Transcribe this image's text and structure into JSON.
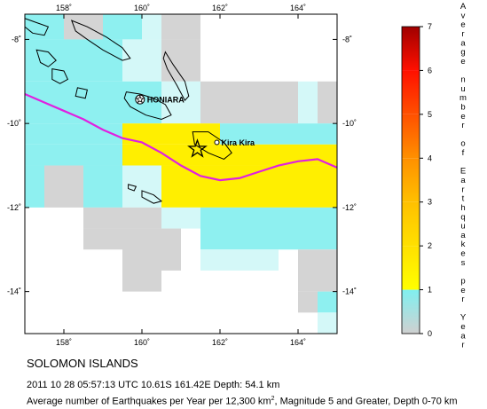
{
  "region_title": "SOLOMON ISLANDS",
  "event_line": "2011 10 28 05:57:13 UTC 10.61S 161.42E Depth: 54.1 km",
  "description": {
    "prefix": "Average number of Earthquakes per Year per 12,300 km",
    "superscript": "2",
    "suffix": ", Magnitude 5 and Greater, Depth 0-70 km"
  },
  "map": {
    "lon_range": [
      157,
      165
    ],
    "lat_range": [
      -15,
      -7.4
    ],
    "lon_ticks": [
      {
        "value": 158,
        "label": "158˚"
      },
      {
        "value": 160,
        "label": "160˚"
      },
      {
        "value": 162,
        "label": "162˚"
      },
      {
        "value": 164,
        "label": "164˚"
      }
    ],
    "lat_ticks": [
      {
        "value": -8,
        "label": "-8˚"
      },
      {
        "value": -10,
        "label": "-10˚"
      },
      {
        "value": -12,
        "label": "-12˚"
      },
      {
        "value": -14,
        "label": "-14˚"
      }
    ],
    "cities": [
      {
        "name": "HONIARA",
        "lon": 159.95,
        "lat": -9.43,
        "marker": "star-in-circle"
      },
      {
        "name": "Kira Kira",
        "lon": 161.92,
        "lat": -10.45,
        "marker": "circle"
      }
    ],
    "epicenter": {
      "lon": 161.42,
      "lat": -10.61,
      "marker": "star"
    },
    "trench_color": "#e020e0",
    "trench_line": [
      [
        157,
        -9.3
      ],
      [
        157.5,
        -9.5
      ],
      [
        158,
        -9.7
      ],
      [
        158.5,
        -9.9
      ],
      [
        159,
        -10.15
      ],
      [
        159.5,
        -10.35
      ],
      [
        160,
        -10.45
      ],
      [
        160.5,
        -10.7
      ],
      [
        161,
        -11.0
      ],
      [
        161.5,
        -11.25
      ],
      [
        162,
        -11.35
      ],
      [
        162.5,
        -11.3
      ],
      [
        163,
        -11.15
      ],
      [
        163.5,
        -11.0
      ],
      [
        164,
        -10.9
      ],
      [
        164.5,
        -10.85
      ],
      [
        165,
        -11.05
      ]
    ],
    "grid_cells": [
      {
        "lon": 157,
        "lat": -7.4,
        "w": 1,
        "h": 0.6,
        "color": "#8ef0f0"
      },
      {
        "lon": 158,
        "lat": -7.4,
        "w": 1,
        "h": 0.6,
        "color": "#d4d4d4"
      },
      {
        "lon": 159,
        "lat": -7.4,
        "w": 1,
        "h": 0.6,
        "color": "#8ef0f0"
      },
      {
        "lon": 160,
        "lat": -7.4,
        "w": 0.5,
        "h": 0.6,
        "color": "#d4f8f8"
      },
      {
        "lon": 160.5,
        "lat": -7.4,
        "w": 1,
        "h": 0.6,
        "color": "#d4d4d4"
      },
      {
        "lon": 157,
        "lat": -8,
        "w": 2.5,
        "h": 1,
        "color": "#8ef0f0"
      },
      {
        "lon": 159.5,
        "lat": -8,
        "w": 1,
        "h": 1,
        "color": "#d4f8f8"
      },
      {
        "lon": 160.5,
        "lat": -8,
        "w": 1,
        "h": 1,
        "color": "#d4d4d4"
      },
      {
        "lon": 157,
        "lat": -9,
        "w": 3.5,
        "h": 1,
        "color": "#8ef0f0"
      },
      {
        "lon": 160.5,
        "lat": -9,
        "w": 1,
        "h": 1,
        "color": "#d4f8f8"
      },
      {
        "lon": 161.5,
        "lat": -9,
        "w": 2.5,
        "h": 1,
        "color": "#d4d4d4"
      },
      {
        "lon": 164,
        "lat": -9,
        "w": 0.5,
        "h": 1,
        "color": "#d4f8f8"
      },
      {
        "lon": 164.5,
        "lat": -9,
        "w": 0.5,
        "h": 1,
        "color": "#d4d4d4"
      },
      {
        "lon": 157,
        "lat": -10,
        "w": 2.5,
        "h": 0.5,
        "color": "#8ef0f0"
      },
      {
        "lon": 159.5,
        "lat": -10,
        "w": 2.5,
        "h": 0.5,
        "color": "#ffef00"
      },
      {
        "lon": 162,
        "lat": -10,
        "w": 3,
        "h": 0.5,
        "color": "#8ef0f0"
      },
      {
        "lon": 157,
        "lat": -10.5,
        "w": 2.5,
        "h": 0.5,
        "color": "#8ef0f0"
      },
      {
        "lon": 159.5,
        "lat": -10.5,
        "w": 5.5,
        "h": 0.5,
        "color": "#ffef00"
      },
      {
        "lon": 157,
        "lat": -11,
        "w": 0.5,
        "h": 1,
        "color": "#8ef0f0"
      },
      {
        "lon": 157.5,
        "lat": -11,
        "w": 1,
        "h": 1,
        "color": "#d4d4d4"
      },
      {
        "lon": 158.5,
        "lat": -11,
        "w": 1,
        "h": 1,
        "color": "#8ef0f0"
      },
      {
        "lon": 159.5,
        "lat": -11,
        "w": 1,
        "h": 1,
        "color": "#d4f8f8"
      },
      {
        "lon": 160.5,
        "lat": -11,
        "w": 2.5,
        "h": 1,
        "color": "#ffef00"
      },
      {
        "lon": 163,
        "lat": -11,
        "w": 1,
        "h": 1,
        "color": "#ffef00"
      },
      {
        "lon": 164,
        "lat": -11,
        "w": 1,
        "h": 1,
        "color": "#ffef00"
      },
      {
        "lon": 158.5,
        "lat": -12,
        "w": 2,
        "h": 0.5,
        "color": "#d4d4d4"
      },
      {
        "lon": 160.5,
        "lat": -12,
        "w": 1,
        "h": 0.5,
        "color": "#d4f8f8"
      },
      {
        "lon": 161.5,
        "lat": -12,
        "w": 3,
        "h": 1,
        "color": "#8ef0f0"
      },
      {
        "lon": 164.5,
        "lat": -12,
        "w": 0.5,
        "h": 1,
        "color": "#8ef0f0"
      },
      {
        "lon": 158.5,
        "lat": -12.5,
        "w": 1,
        "h": 0.5,
        "color": "#d4d4d4"
      },
      {
        "lon": 159.5,
        "lat": -12.5,
        "w": 1,
        "h": 1.5,
        "color": "#d4d4d4"
      },
      {
        "lon": 160.5,
        "lat": -12.5,
        "w": 0.5,
        "h": 1,
        "color": "#d4d4d4"
      },
      {
        "lon": 161.5,
        "lat": -13,
        "w": 2,
        "h": 0.5,
        "color": "#d4f8f8"
      },
      {
        "lon": 164,
        "lat": -13,
        "w": 1,
        "h": 1,
        "color": "#d4d4d4"
      },
      {
        "lon": 164,
        "lat": -14,
        "w": 0.5,
        "h": 0.5,
        "color": "#d4d4d4"
      },
      {
        "lon": 164.5,
        "lat": -14,
        "w": 0.5,
        "h": 0.5,
        "color": "#8ef0f0"
      },
      {
        "lon": 164.5,
        "lat": -14.5,
        "w": 0.5,
        "h": 0.5,
        "color": "#d4f8f8"
      }
    ],
    "islands": [
      [
        [
          157,
          -7.5
        ],
        [
          157.3,
          -7.6
        ],
        [
          157.6,
          -7.7
        ],
        [
          157.5,
          -7.9
        ],
        [
          157.2,
          -7.85
        ],
        [
          157,
          -7.7
        ]
      ],
      [
        [
          158.2,
          -7.55
        ],
        [
          158.6,
          -7.7
        ],
        [
          159.1,
          -7.95
        ],
        [
          159.5,
          -8.2
        ],
        [
          159.7,
          -8.45
        ],
        [
          159.5,
          -8.5
        ],
        [
          159.0,
          -8.25
        ],
        [
          158.6,
          -8.0
        ],
        [
          158.3,
          -7.8
        ]
      ],
      [
        [
          157.3,
          -8.25
        ],
        [
          157.6,
          -8.3
        ],
        [
          157.8,
          -8.5
        ],
        [
          157.6,
          -8.65
        ],
        [
          157.4,
          -8.55
        ]
      ],
      [
        [
          157.7,
          -8.7
        ],
        [
          158.0,
          -8.75
        ],
        [
          158.1,
          -8.95
        ],
        [
          157.9,
          -9.05
        ],
        [
          157.7,
          -8.95
        ]
      ],
      [
        [
          158.35,
          -9.15
        ],
        [
          158.6,
          -9.2
        ],
        [
          158.55,
          -9.4
        ],
        [
          158.3,
          -9.35
        ]
      ],
      [
        [
          159.6,
          -9.25
        ],
        [
          159.95,
          -9.3
        ],
        [
          160.3,
          -9.4
        ],
        [
          160.6,
          -9.55
        ],
        [
          160.75,
          -9.8
        ],
        [
          160.5,
          -9.9
        ],
        [
          160.1,
          -9.8
        ],
        [
          159.7,
          -9.6
        ],
        [
          159.55,
          -9.4
        ]
      ],
      [
        [
          160.6,
          -8.3
        ],
        [
          160.8,
          -8.6
        ],
        [
          161.1,
          -9.0
        ],
        [
          161.2,
          -9.35
        ],
        [
          161.1,
          -9.45
        ],
        [
          160.9,
          -9.1
        ],
        [
          160.65,
          -8.7
        ],
        [
          160.55,
          -8.45
        ]
      ],
      [
        [
          161.3,
          -10.2
        ],
        [
          161.7,
          -10.2
        ],
        [
          162.1,
          -10.45
        ],
        [
          162.3,
          -10.7
        ],
        [
          162.1,
          -10.85
        ],
        [
          161.7,
          -10.7
        ],
        [
          161.35,
          -10.5
        ]
      ],
      [
        [
          160.0,
          -11.6
        ],
        [
          160.3,
          -11.7
        ],
        [
          160.5,
          -11.85
        ],
        [
          160.3,
          -11.9
        ],
        [
          160.0,
          -11.75
        ]
      ],
      [
        [
          159.65,
          -11.45
        ],
        [
          159.85,
          -11.5
        ],
        [
          159.8,
          -11.6
        ],
        [
          159.65,
          -11.55
        ]
      ]
    ]
  },
  "colorbar": {
    "title_letters": [
      "A",
      "v",
      "e",
      "r",
      "a",
      "g",
      "e",
      " ",
      "n",
      "u",
      "m",
      "b",
      "e",
      "r",
      " ",
      "o",
      "f",
      " ",
      "E",
      "a",
      "r",
      "t",
      "h",
      "q",
      "u",
      "a",
      "k",
      "e",
      "s",
      " ",
      "p",
      "e",
      "r",
      " ",
      "Y",
      "e",
      "a",
      "r"
    ],
    "ticks": [
      "0",
      "1",
      "2",
      "3",
      "4",
      "5",
      "6",
      "7"
    ],
    "segments": [
      {
        "from": 0,
        "to": 1,
        "color_top": "#80f0f0",
        "color_bottom": "#d0d0d0"
      },
      {
        "from": 1,
        "to": 2,
        "color_top": "#ffe000",
        "color_bottom": "#ffff00"
      },
      {
        "from": 2,
        "to": 3,
        "color_top": "#ffc000",
        "color_bottom": "#ffe000"
      },
      {
        "from": 3,
        "to": 4,
        "color_top": "#ff9000",
        "color_bottom": "#ffc000"
      },
      {
        "from": 4,
        "to": 5,
        "color_top": "#ff5000",
        "color_bottom": "#ff9000"
      },
      {
        "from": 5,
        "to": 6,
        "color_top": "#ff1000",
        "color_bottom": "#ff5000"
      },
      {
        "from": 6,
        "to": 7,
        "color_top": "#a00000",
        "color_bottom": "#ff1000"
      }
    ]
  }
}
